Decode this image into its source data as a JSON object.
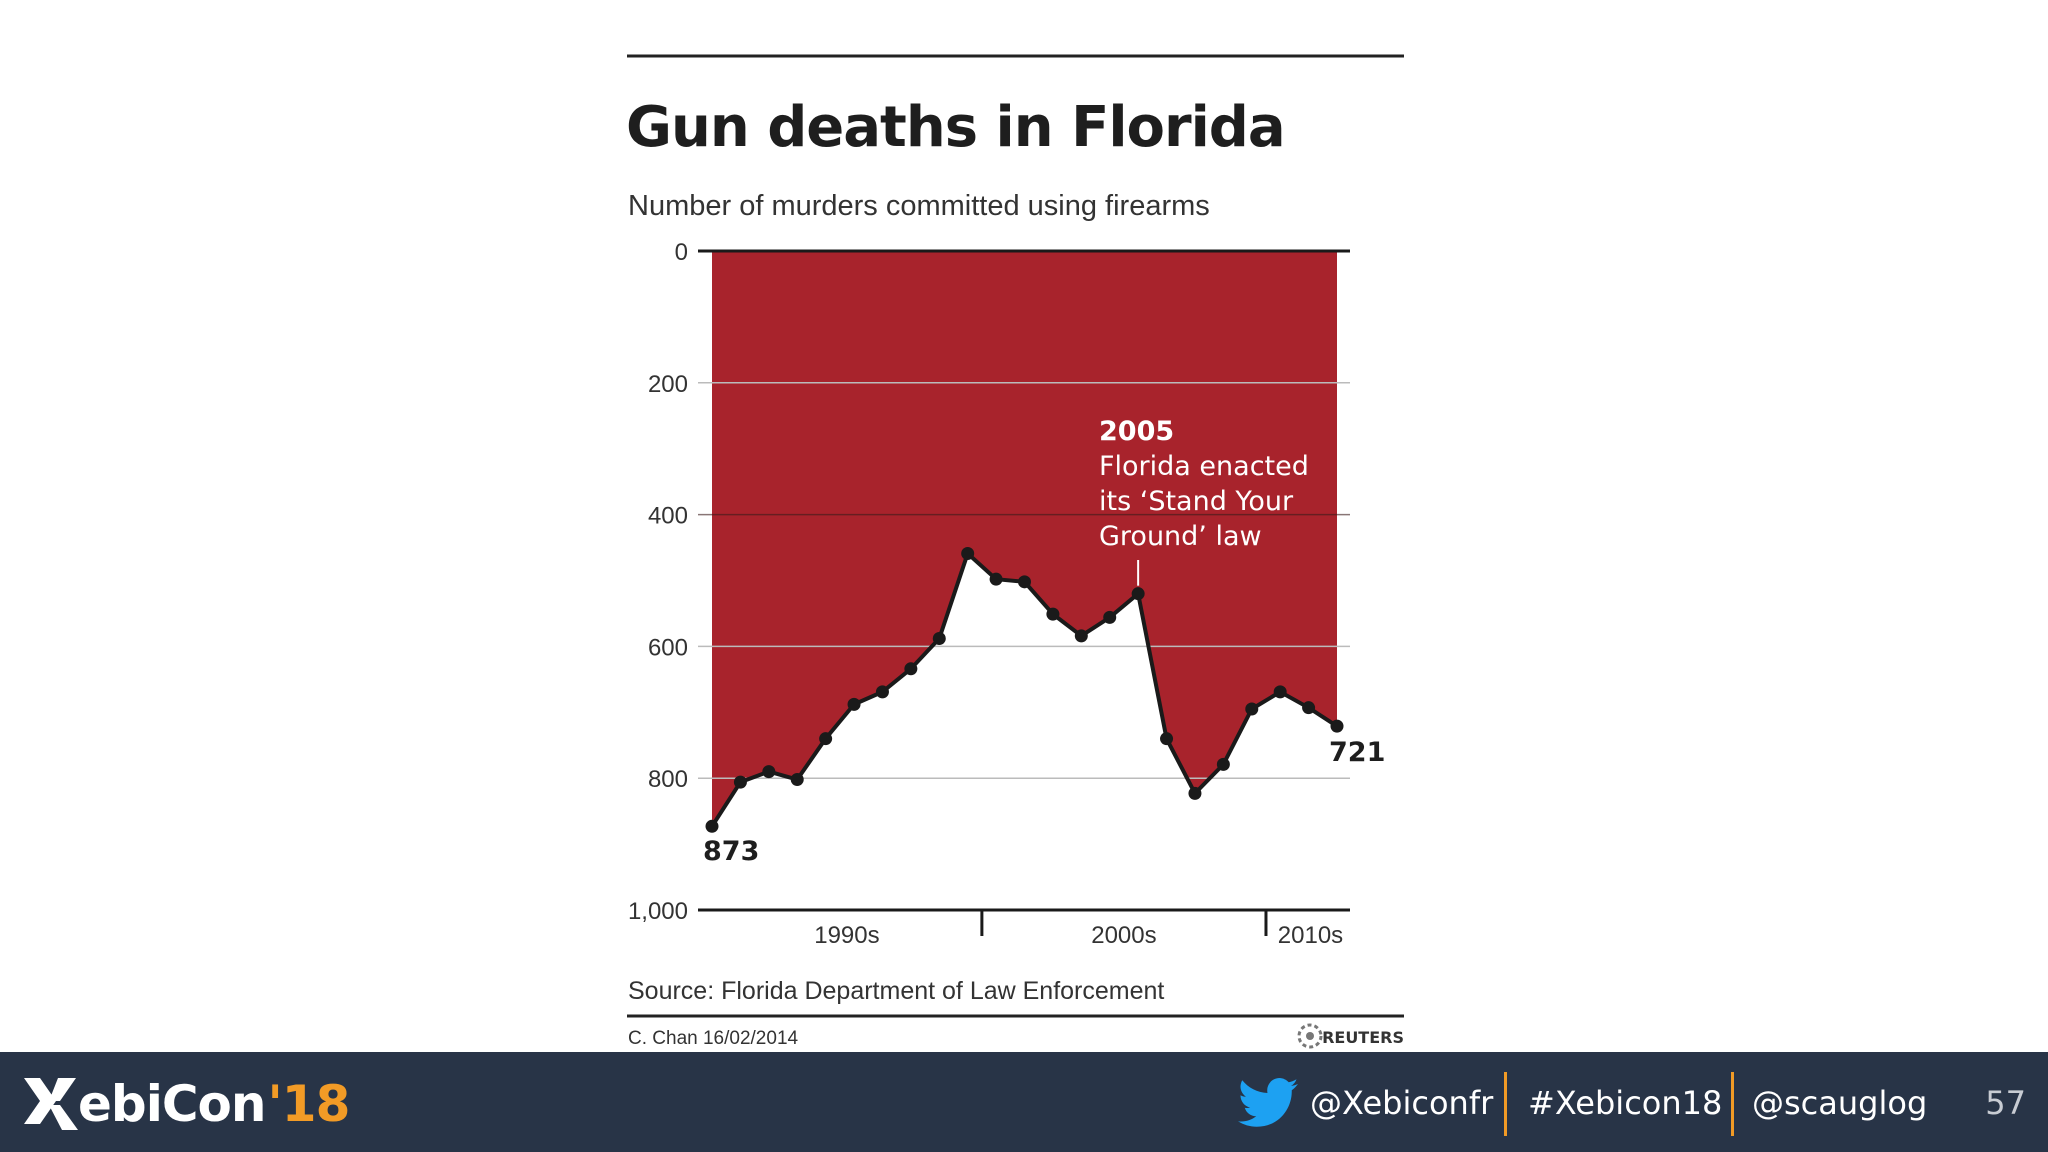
{
  "chart_data": {
    "type": "area",
    "title": "Gun deaths in Florida",
    "subtitle": "Number of murders committed using firearms",
    "y_inverted": true,
    "ylim": [
      0,
      1000
    ],
    "yticks": [
      0,
      200,
      400,
      600,
      800,
      1000
    ],
    "ytick_labels": [
      "0",
      "200",
      "400",
      "600",
      "800",
      "1,000"
    ],
    "decade_labels": [
      "1990s",
      "2000s",
      "2010s"
    ],
    "x": [
      1990,
      1991,
      1992,
      1993,
      1994,
      1995,
      1996,
      1997,
      1998,
      1999,
      2000,
      2001,
      2002,
      2003,
      2004,
      2005,
      2006,
      2007,
      2008,
      2009,
      2010,
      2011,
      2012
    ],
    "values": [
      873,
      806,
      790,
      802,
      740,
      688,
      669,
      634,
      588,
      459,
      498,
      502,
      551,
      584,
      556,
      520,
      740,
      823,
      779,
      695,
      669,
      693,
      721
    ],
    "start_label": "873",
    "end_label": "721",
    "annotation": {
      "year": "2005",
      "lines": [
        "Florida enacted",
        "its ‘Stand Your",
        "Ground’ law"
      ],
      "x": 2005
    },
    "source": "Source: Florida Department of Law Enforcement",
    "credit": "C. Chan  16/02/2014",
    "publisher": "REUTERS",
    "colors": {
      "fill": "#a8232c",
      "line": "#1a1a1a",
      "grid": "#bbbbbb"
    }
  },
  "footer": {
    "brand_name": "ebiCon",
    "brand_year": "'18",
    "twitter_handle": "@Xebiconfr",
    "hashtag": "#Xebicon18",
    "speaker_handle": "@scauglog",
    "page_number": "57",
    "colors": {
      "background": "#283447",
      "accent": "#f29b26"
    }
  }
}
